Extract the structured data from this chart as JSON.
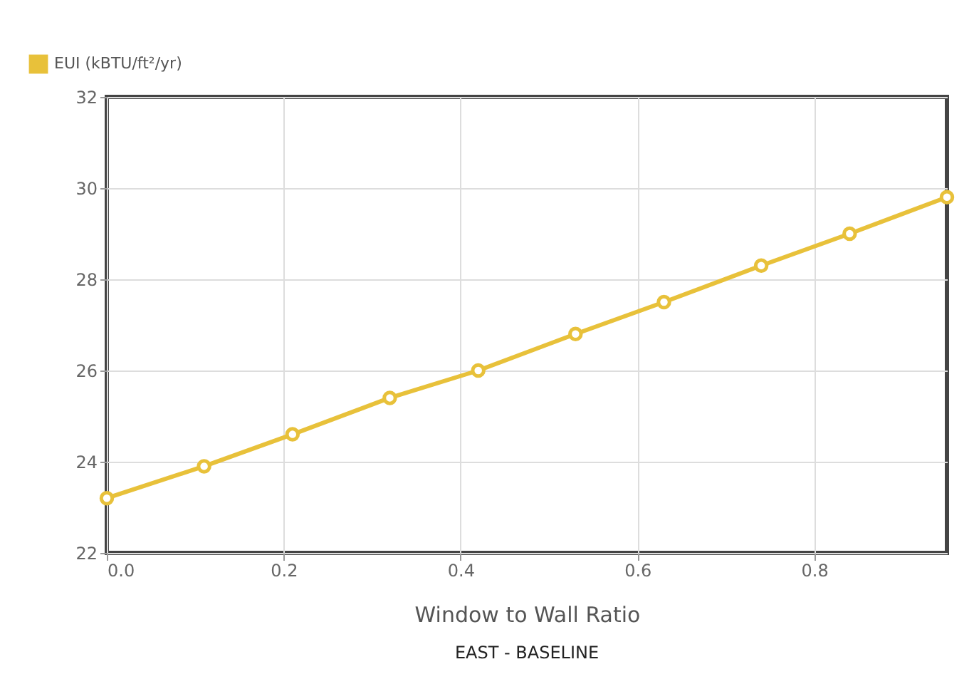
{
  "chart_data": {
    "type": "line",
    "title": "EAST - BASELINE",
    "xlabel": "Window to Wall Ratio",
    "x": [
      0,
      0.11,
      0.21,
      0.32,
      0.42,
      0.53,
      0.63,
      0.74,
      0.84,
      0.95
    ],
    "series": [
      {
        "name": "EUI (kBTU/ft²/yr)",
        "color": "#e8c13a",
        "values": [
          23.2,
          23.9,
          24.6,
          25.4,
          26.0,
          26.8,
          27.5,
          28.3,
          29.0,
          29.8
        ]
      }
    ],
    "xlim": [
      0,
      0.95
    ],
    "xticks": [
      {
        "value": 0,
        "label": "0.0"
      },
      0.2,
      0.4,
      0.6,
      0.8
    ],
    "ylim": [
      22,
      32
    ],
    "yticks": [
      22,
      24,
      26,
      28,
      30,
      32
    ],
    "grid": true,
    "legend": "top left",
    "marker": "circle",
    "line_style": "solid"
  }
}
